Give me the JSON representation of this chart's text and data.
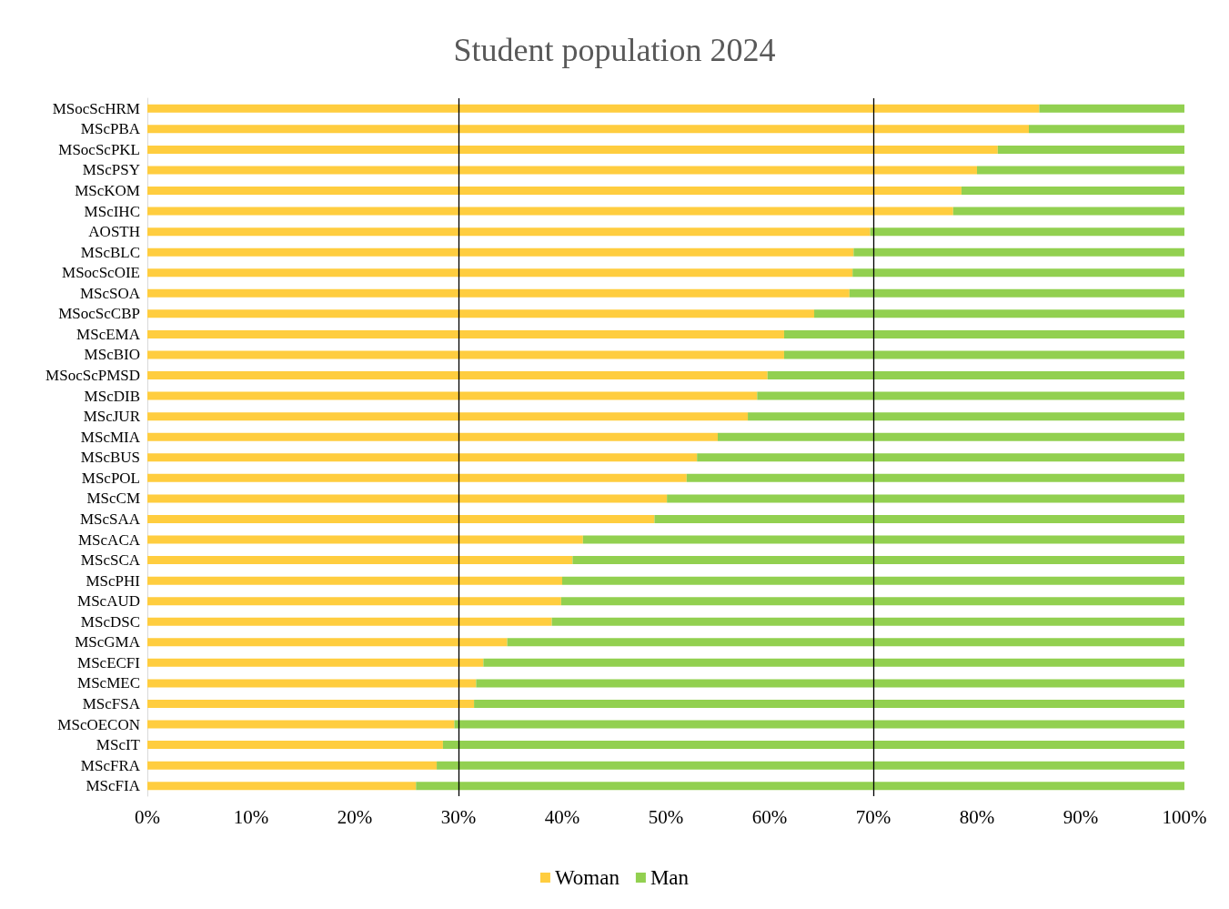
{
  "chart_data": {
    "type": "bar",
    "title": "Student population 2024",
    "orientation": "horizontal",
    "stacked": true,
    "categories": [
      "MSocScHRM",
      "MScPBA",
      "MSocScPKL",
      "MScPSY",
      "MScKOM",
      "MScIHC",
      "AOSTH",
      "MScBLC",
      "MSocScOIE",
      "MScSOA",
      "MSocScCBP",
      "MScEMA",
      "MScBIO",
      "MSocScPMSD",
      "MScDIB",
      "MScJUR",
      "MScMIA",
      "MScBUS",
      "MScPOL",
      "MScCM",
      "MScSAA",
      "MScACA",
      "MScSCA",
      "MScPHI",
      "MScAUD",
      "MScDSC",
      "MScGMA",
      "MScECFI",
      "MScMEC",
      "MScFSA",
      "MScOECON",
      "MScIT",
      "MScFRA",
      "MScFIA"
    ],
    "series": [
      {
        "name": "Woman",
        "color": "#ffcd3f",
        "values": [
          86,
          85,
          82,
          80,
          78.5,
          77.7,
          69.7,
          68.1,
          68,
          67.7,
          64.3,
          61.4,
          61.4,
          59.8,
          58.8,
          57.9,
          55,
          53,
          52,
          50.1,
          48.9,
          42,
          41,
          40,
          39.9,
          39,
          34.7,
          32.4,
          31.7,
          31.5,
          29.6,
          28.5,
          27.9,
          25.9
        ]
      },
      {
        "name": "Man",
        "color": "#92d050",
        "values": [
          14,
          15,
          18,
          20,
          21.5,
          22.3,
          30.3,
          31.9,
          32,
          32.3,
          35.7,
          38.6,
          38.6,
          40.2,
          41.2,
          42.1,
          45,
          47,
          48,
          49.9,
          51.1,
          58,
          59,
          60,
          60.1,
          61,
          65.3,
          67.6,
          68.3,
          68.5,
          70.4,
          71.5,
          72.1,
          74.1
        ]
      }
    ],
    "xlim": [
      0,
      100
    ],
    "xticks": [
      {
        "value": 0,
        "label": "0%"
      },
      {
        "value": 10,
        "label": "10%"
      },
      {
        "value": 20,
        "label": "20%"
      },
      {
        "value": 30,
        "label": "30%"
      },
      {
        "value": 40,
        "label": "40%"
      },
      {
        "value": 50,
        "label": "50%"
      },
      {
        "value": 60,
        "label": "60%"
      },
      {
        "value": 70,
        "label": "70%"
      },
      {
        "value": 80,
        "label": "80%"
      },
      {
        "value": 90,
        "label": "90%"
      },
      {
        "value": 100,
        "label": "100%"
      }
    ],
    "ref_lines": [
      {
        "axis": "x",
        "value": 30,
        "label": null,
        "color": "#000000"
      },
      {
        "axis": "x",
        "value": 70,
        "label": null,
        "color": "#000000"
      }
    ],
    "grid": false,
    "legend": "bottom"
  }
}
